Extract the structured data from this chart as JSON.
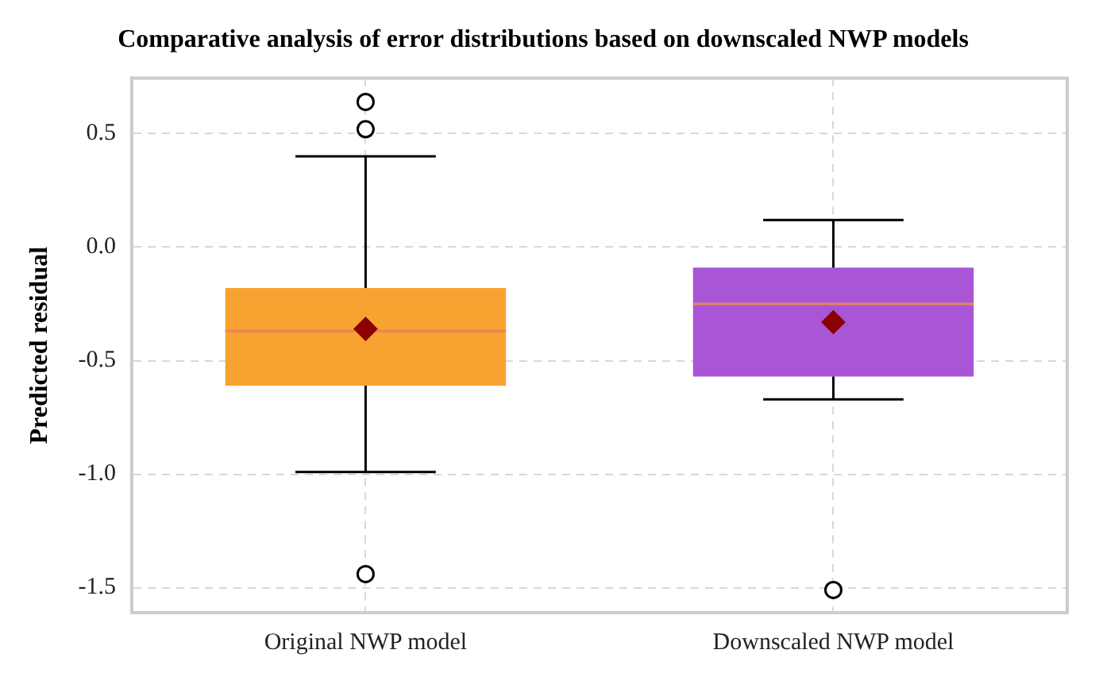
{
  "chart_data": {
    "type": "box",
    "title": "Comparative analysis of error distributions based on downscaled NWP models",
    "ylabel": "Predicted residual",
    "categories": [
      "Original NWP model",
      "Downscaled NWP model"
    ],
    "colors": [
      "#f7a231",
      "#a855d6"
    ],
    "boxes": [
      {
        "low": -0.99,
        "q1": -0.61,
        "median": -0.37,
        "q3": -0.18,
        "high": 0.4,
        "mean": -0.36,
        "outliers": [
          0.64,
          0.52,
          -1.44
        ]
      },
      {
        "low": -0.67,
        "q1": -0.57,
        "median": -0.25,
        "q3": -0.09,
        "high": 0.12,
        "mean": -0.33,
        "outliers": [
          -1.51
        ]
      }
    ],
    "ylim": [
      -1.61,
      0.745
    ],
    "yticks": [
      {
        "value": -1.5,
        "label": "-1.5"
      },
      {
        "value": -1.0,
        "label": "-1.0"
      },
      {
        "value": -0.5,
        "label": "-0.5"
      },
      {
        "value": 0.0,
        "label": "0.0"
      },
      {
        "value": 0.5,
        "label": "0.5"
      }
    ],
    "grid": true,
    "legend": false
  }
}
